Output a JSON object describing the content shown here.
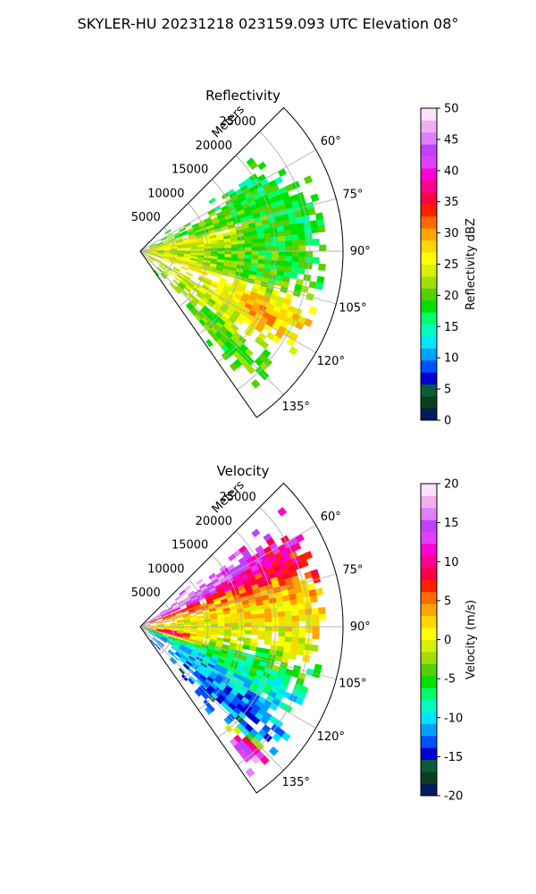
{
  "suptitle": "SKYLER-HU  20231218  023159.093 UTC Elevation 08°",
  "chart_data": [
    {
      "type": "heatmap",
      "title": "Reflectivity",
      "projection": "polar-sector",
      "theta_ticks": [
        "60°",
        "75°",
        "90°",
        "105°",
        "120°",
        "135°"
      ],
      "theta_tick_values": [
        60,
        75,
        90,
        105,
        120,
        135
      ],
      "theta_range": [
        45,
        145
      ],
      "r_label": "Meters",
      "r_ticks": [
        "5000",
        "10000",
        "15000",
        "20000",
        "25000"
      ],
      "r_tick_values": [
        5000,
        10000,
        15000,
        20000,
        25000
      ],
      "r_max": 30000,
      "grid": true,
      "colorbar": {
        "label": "Reflectivity dBZ",
        "ticks": [
          "0",
          "5",
          "10",
          "15",
          "20",
          "25",
          "30",
          "35",
          "40",
          "45",
          "50"
        ],
        "range": [
          0,
          50
        ],
        "colors": [
          "#061a5c",
          "#0b3d1a",
          "#0a5c3a",
          "#0000d0",
          "#0050ff",
          "#00a0ff",
          "#00e5ff",
          "#00ffbf",
          "#00ff6a",
          "#00e000",
          "#55d000",
          "#a0e000",
          "#d8f000",
          "#ffff00",
          "#ffd700",
          "#ffa500",
          "#ff6a00",
          "#ff2000",
          "#ff0040",
          "#ff0090",
          "#ff00d0",
          "#e040ff",
          "#c040ff",
          "#e080ff",
          "#f0b0f0",
          "#ffe0ff"
        ]
      },
      "echo_clusters": [
        {
          "theta": 61,
          "r": 18500,
          "dtheta": 6,
          "dr": 4000,
          "value": 17
        },
        {
          "theta": 68,
          "r": 12000,
          "dtheta": 7,
          "dr": 9000,
          "value": 20
        },
        {
          "theta": 74,
          "r": 22000,
          "dtheta": 8,
          "dr": 4000,
          "value": 17
        },
        {
          "theta": 80,
          "r": 6000,
          "dtheta": 6,
          "dr": 8000,
          "value": 27
        },
        {
          "theta": 82,
          "r": 20000,
          "dtheta": 6,
          "dr": 6000,
          "value": 18
        },
        {
          "theta": 92,
          "r": 10000,
          "dtheta": 10,
          "dr": 10000,
          "value": 21
        },
        {
          "theta": 96,
          "r": 19000,
          "dtheta": 8,
          "dr": 6000,
          "value": 18
        },
        {
          "theta": 100,
          "r": 5000,
          "dtheta": 8,
          "dr": 6000,
          "value": 26
        },
        {
          "theta": 112,
          "r": 19000,
          "dtheta": 7,
          "dr": 7000,
          "value": 27
        },
        {
          "theta": 116,
          "r": 19500,
          "dtheta": 4,
          "dr": 3000,
          "value": 35
        },
        {
          "theta": 122,
          "r": 12000,
          "dtheta": 7,
          "dr": 10000,
          "value": 24
        },
        {
          "theta": 134,
          "r": 17000,
          "dtheta": 5,
          "dr": 9000,
          "value": 20
        }
      ]
    },
    {
      "type": "heatmap",
      "title": "Velocity",
      "projection": "polar-sector",
      "theta_ticks": [
        "60°",
        "75°",
        "90°",
        "105°",
        "120°",
        "135°"
      ],
      "theta_tick_values": [
        60,
        75,
        90,
        105,
        120,
        135
      ],
      "theta_range": [
        45,
        145
      ],
      "r_label": "Meters",
      "r_ticks": [
        "5000",
        "10000",
        "15000",
        "20000",
        "25000"
      ],
      "r_tick_values": [
        5000,
        10000,
        15000,
        20000,
        25000
      ],
      "r_max": 30000,
      "grid": true,
      "colorbar": {
        "label": "Velocity (m/s)",
        "ticks": [
          "-20",
          "-15",
          "-10",
          "-5",
          "0",
          "5",
          "10",
          "15",
          "20"
        ],
        "range": [
          -20,
          20
        ],
        "colors": [
          "#061a5c",
          "#0b3d1a",
          "#0a5c3a",
          "#0000d0",
          "#0050ff",
          "#00a0ff",
          "#00e5ff",
          "#00ffbf",
          "#00ff6a",
          "#00e000",
          "#55d000",
          "#a0e000",
          "#d8f000",
          "#ffff00",
          "#ffd700",
          "#ffa500",
          "#ff6a00",
          "#ff2000",
          "#ff0040",
          "#ff0090",
          "#ff00d0",
          "#e040ff",
          "#c040ff",
          "#e080ff",
          "#f0b0f0",
          "#ffe0ff"
        ]
      },
      "echo_clusters": [
        {
          "theta": 60,
          "r": 11000,
          "dtheta": 6,
          "dr": 9000,
          "value": 15
        },
        {
          "theta": 64,
          "r": 21000,
          "dtheta": 7,
          "dr": 6000,
          "value": 9
        },
        {
          "theta": 72,
          "r": 14000,
          "dtheta": 7,
          "dr": 10000,
          "value": 4
        },
        {
          "theta": 82,
          "r": 19000,
          "dtheta": 8,
          "dr": 8000,
          "value": 2
        },
        {
          "theta": 90,
          "r": 10000,
          "dtheta": 10,
          "dr": 10000,
          "value": 0
        },
        {
          "theta": 96,
          "r": 23000,
          "dtheta": 5,
          "dr": 3000,
          "value": 1
        },
        {
          "theta": 102,
          "r": 4000,
          "dtheta": 5,
          "dr": 4000,
          "value": 13
        },
        {
          "theta": 108,
          "r": 16000,
          "dtheta": 8,
          "dr": 10000,
          "value": -6
        },
        {
          "theta": 112,
          "r": 5000,
          "dtheta": 6,
          "dr": 5000,
          "value": -10
        },
        {
          "theta": 120,
          "r": 14000,
          "dtheta": 8,
          "dr": 10000,
          "value": -11
        },
        {
          "theta": 130,
          "r": 16000,
          "dtheta": 6,
          "dr": 8000,
          "value": -13
        },
        {
          "theta": 138,
          "r": 24000,
          "dtheta": 3,
          "dr": 3000,
          "value": 17
        }
      ]
    }
  ]
}
